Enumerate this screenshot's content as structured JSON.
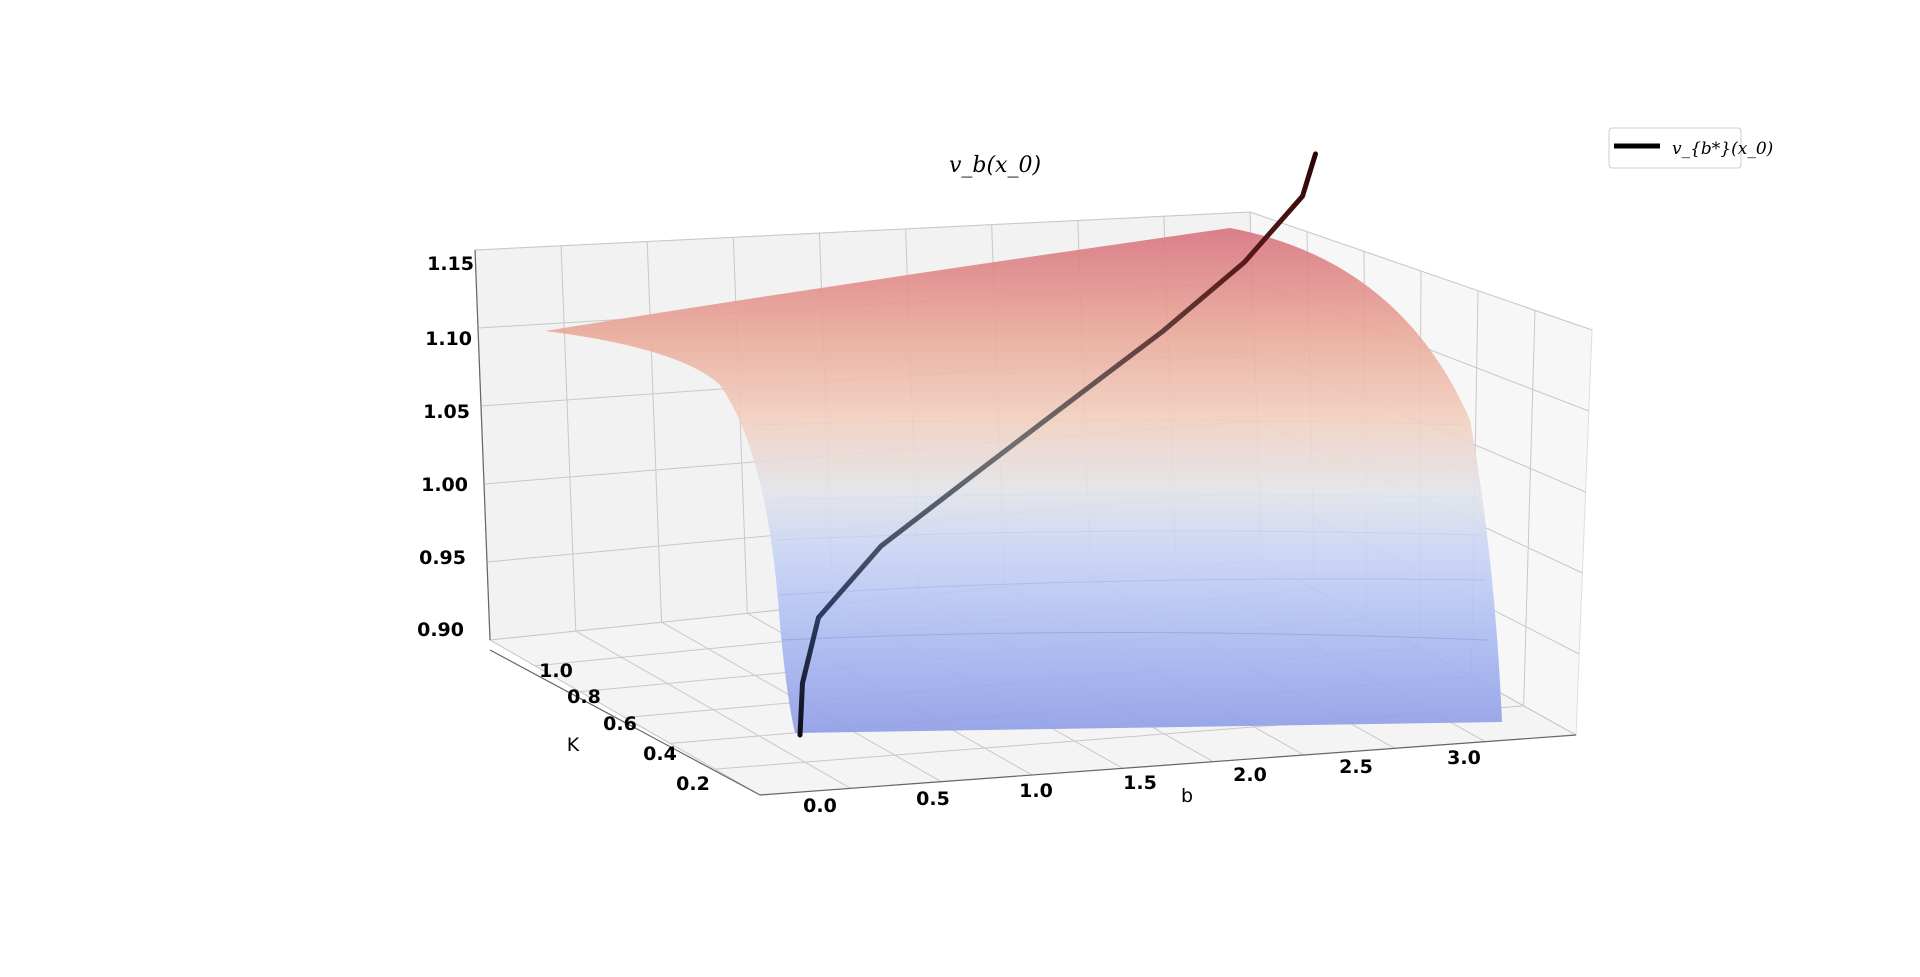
{
  "chart_data": {
    "type": "surface3d",
    "title": "v_b(x_0)",
    "xlabel": "b",
    "ylabel": "K",
    "zlabel": "",
    "x_ticks": [
      "0.0",
      "0.5",
      "1.0",
      "1.5",
      "2.0",
      "2.5",
      "3.0"
    ],
    "y_ticks": [
      "0.2",
      "0.4",
      "0.6",
      "0.8",
      "1.0"
    ],
    "z_ticks": [
      "0.90",
      "0.95",
      "1.00",
      "1.05",
      "1.10",
      "1.15"
    ],
    "xlim": [
      -0.1,
      3.6
    ],
    "ylim": [
      0.1,
      1.05
    ],
    "zlim": [
      0.9,
      1.16
    ],
    "grid": true,
    "colormap": "coolwarm",
    "surface": {
      "name": "v_b(x_0)",
      "b_range": [
        0.0,
        3.3
      ],
      "K_range": [
        0.15,
        1.0
      ],
      "value_range": [
        0.905,
        1.16
      ]
    },
    "series": [
      {
        "name": "v_{b*}(x_0)",
        "line_color": "#000000",
        "points": [
          {
            "b": 0.0,
            "K": 0.15,
            "v": 0.905
          },
          {
            "b": 0.0,
            "K": 0.2,
            "v": 0.93
          },
          {
            "b": 0.05,
            "K": 0.3,
            "v": 0.96
          },
          {
            "b": 0.3,
            "K": 0.45,
            "v": 0.99
          },
          {
            "b": 0.7,
            "K": 0.6,
            "v": 1.02
          },
          {
            "b": 1.1,
            "K": 0.72,
            "v": 1.05
          },
          {
            "b": 1.5,
            "K": 0.82,
            "v": 1.08
          },
          {
            "b": 1.85,
            "K": 0.9,
            "v": 1.11
          },
          {
            "b": 2.1,
            "K": 0.96,
            "v": 1.14
          },
          {
            "b": 2.15,
            "K": 1.0,
            "v": 1.16
          }
        ]
      }
    ],
    "legend": {
      "position": "top-right",
      "entries": [
        {
          "label": "v_{b*}(x_0)",
          "color": "#000000"
        }
      ]
    }
  }
}
